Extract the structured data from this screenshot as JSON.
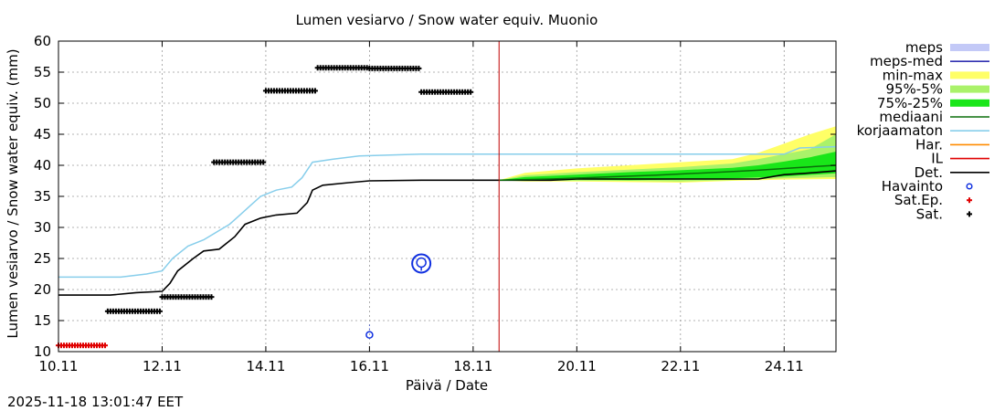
{
  "chart_data": {
    "type": "line",
    "title": "Lumen vesiarvo / Snow water equiv.  Muonio",
    "xlabel": "Päivä / Date",
    "ylabel": "Lumen vesiarvo / Snow water equiv. (mm)",
    "timestamp": "2025-11-18 13:01:47 EET",
    "xlim": [
      0,
      15
    ],
    "ylim": [
      10,
      60
    ],
    "x_unit": "days since 10.11",
    "x_ticks": [
      {
        "x": 0,
        "label": "10.11"
      },
      {
        "x": 2,
        "label": "12.11"
      },
      {
        "x": 4,
        "label": "14.11"
      },
      {
        "x": 6,
        "label": "16.11"
      },
      {
        "x": 8,
        "label": "18.11"
      },
      {
        "x": 10,
        "label": "20.11"
      },
      {
        "x": 12,
        "label": "22.11"
      },
      {
        "x": 14,
        "label": "24.11"
      }
    ],
    "y_ticks": [
      10,
      15,
      20,
      25,
      30,
      35,
      40,
      45,
      50,
      55,
      60
    ],
    "forecast_start_x": 8.5,
    "legend": [
      {
        "label": "meps",
        "color": "#c3c9f7",
        "style": "band"
      },
      {
        "label": "meps-med",
        "color": "#3030b0",
        "style": "line"
      },
      {
        "label": "min-max",
        "color": "#ffff66",
        "style": "band"
      },
      {
        "label": "95%-5%",
        "color": "#aaf26a",
        "style": "band"
      },
      {
        "label": "75%-25%",
        "color": "#19e619",
        "style": "band"
      },
      {
        "label": "mediaani",
        "color": "#0a6e0a",
        "style": "line"
      },
      {
        "label": "korjaamaton",
        "color": "#87ceeb",
        "style": "line"
      },
      {
        "label": "Har.",
        "color": "#ff8c00",
        "style": "line"
      },
      {
        "label": "IL",
        "color": "#e00000",
        "style": "line"
      },
      {
        "label": "Det.",
        "color": "#000000",
        "style": "line"
      },
      {
        "label": "Havainto",
        "color": "#1030e0",
        "style": "circle"
      },
      {
        "label": "Sat.Ep.",
        "color": "#e00000",
        "style": "plus"
      },
      {
        "label": "Sat.",
        "color": "#000000",
        "style": "plus"
      }
    ],
    "series": [
      {
        "name": "korjaamaton",
        "color": "#87ceeb",
        "points": [
          [
            0,
            22
          ],
          [
            1.2,
            22
          ],
          [
            1.7,
            22.5
          ],
          [
            2.0,
            23
          ],
          [
            2.2,
            25
          ],
          [
            2.5,
            27
          ],
          [
            2.8,
            28
          ],
          [
            3.1,
            29.5
          ],
          [
            3.3,
            30.5
          ],
          [
            3.5,
            32
          ],
          [
            3.7,
            33.5
          ],
          [
            3.9,
            35
          ],
          [
            4.2,
            36
          ],
          [
            4.5,
            36.5
          ],
          [
            4.7,
            38
          ],
          [
            4.9,
            40.5
          ],
          [
            5.3,
            41
          ],
          [
            5.8,
            41.5
          ],
          [
            7.0,
            41.8
          ],
          [
            8.5,
            41.8
          ],
          [
            14.0,
            41.8
          ],
          [
            14.3,
            42.8
          ],
          [
            15,
            43
          ]
        ]
      },
      {
        "name": "Det.",
        "color": "#000000",
        "points": [
          [
            0,
            19.1
          ],
          [
            1.0,
            19.1
          ],
          [
            1.5,
            19.5
          ],
          [
            2.0,
            19.7
          ],
          [
            2.15,
            21
          ],
          [
            2.3,
            23
          ],
          [
            2.6,
            25
          ],
          [
            2.8,
            26.2
          ],
          [
            3.1,
            26.5
          ],
          [
            3.4,
            28.5
          ],
          [
            3.6,
            30.5
          ],
          [
            3.9,
            31.5
          ],
          [
            4.2,
            32
          ],
          [
            4.6,
            32.3
          ],
          [
            4.8,
            34
          ],
          [
            4.9,
            36
          ],
          [
            5.1,
            36.8
          ],
          [
            5.6,
            37.2
          ],
          [
            6.0,
            37.5
          ],
          [
            7.0,
            37.6
          ],
          [
            8.5,
            37.6
          ],
          [
            9.5,
            37.6
          ],
          [
            10,
            37.8
          ],
          [
            13.5,
            37.8
          ],
          [
            14.0,
            38.5
          ],
          [
            14.4,
            38.7
          ],
          [
            15,
            39.1
          ]
        ]
      },
      {
        "name": "mediaani",
        "color": "#0a6e0a",
        "points": [
          [
            8.5,
            37.6
          ],
          [
            9.5,
            37.8
          ],
          [
            10.5,
            38.1
          ],
          [
            11.5,
            38.4
          ],
          [
            12.5,
            38.8
          ],
          [
            13.5,
            39.2
          ],
          [
            14.2,
            39.6
          ],
          [
            15,
            40.0
          ]
        ]
      }
    ],
    "bands": [
      {
        "name": "min-max",
        "color": "#ffff66",
        "upper": [
          [
            8.5,
            37.6
          ],
          [
            9,
            38.8
          ],
          [
            10,
            39.5
          ],
          [
            11,
            40
          ],
          [
            12,
            40.5
          ],
          [
            13,
            41
          ],
          [
            13.5,
            42
          ],
          [
            14,
            43.5
          ],
          [
            14.5,
            45
          ],
          [
            15,
            46.3
          ]
        ],
        "lower": [
          [
            15,
            37.8
          ],
          [
            14,
            37.7
          ],
          [
            13,
            37.5
          ],
          [
            12,
            37.2
          ],
          [
            11,
            37.3
          ],
          [
            10,
            37.4
          ],
          [
            9,
            37.4
          ],
          [
            8.5,
            37.6
          ]
        ]
      },
      {
        "name": "95%-5%",
        "color": "#aaf26a",
        "upper": [
          [
            8.5,
            37.6
          ],
          [
            9,
            38.4
          ],
          [
            10,
            38.9
          ],
          [
            11,
            39.3
          ],
          [
            12,
            39.7
          ],
          [
            13,
            40.3
          ],
          [
            13.5,
            41.0
          ],
          [
            14,
            41.8
          ],
          [
            14.5,
            42.6
          ],
          [
            15,
            45.0
          ]
        ],
        "lower": [
          [
            15,
            38.1
          ],
          [
            14,
            37.9
          ],
          [
            13,
            37.6
          ],
          [
            12,
            37.4
          ],
          [
            11,
            37.5
          ],
          [
            10,
            37.5
          ],
          [
            9,
            37.5
          ],
          [
            8.5,
            37.6
          ]
        ]
      },
      {
        "name": "75%-25%",
        "color": "#19e619",
        "upper": [
          [
            8.5,
            37.6
          ],
          [
            9,
            38.1
          ],
          [
            10,
            38.5
          ],
          [
            11,
            38.9
          ],
          [
            12,
            39.2
          ],
          [
            13,
            39.6
          ],
          [
            13.5,
            40.0
          ],
          [
            14,
            40.6
          ],
          [
            14.5,
            41.3
          ],
          [
            15,
            42.2
          ]
        ],
        "lower": [
          [
            15,
            38.7
          ],
          [
            14,
            38.2
          ],
          [
            13,
            37.9
          ],
          [
            12,
            37.7
          ],
          [
            11,
            37.6
          ],
          [
            10,
            37.7
          ],
          [
            9,
            37.6
          ],
          [
            8.5,
            37.6
          ]
        ]
      }
    ],
    "sat_segments": [
      {
        "x0": 0.95,
        "x1": 2.0,
        "y": 16.5
      },
      {
        "x0": 2.0,
        "x1": 3.0,
        "y": 18.8
      },
      {
        "x0": 3.0,
        "x1": 4.0,
        "y": 40.5
      },
      {
        "x0": 4.0,
        "x1": 5.0,
        "y": 52.0
      },
      {
        "x0": 5.0,
        "x1": 6.0,
        "y": 55.7
      },
      {
        "x0": 6.0,
        "x1": 7.0,
        "y": 55.6
      },
      {
        "x0": 7.0,
        "x1": 8.0,
        "y": 51.8
      }
    ],
    "sat_ep_segments": [
      {
        "x0": 0.0,
        "x1": 0.95,
        "y": 11.0
      }
    ],
    "havainto": [
      {
        "x": 6.0,
        "y": 12.7,
        "size": "small"
      },
      {
        "x": 7.0,
        "y": 24.2,
        "size": "large"
      }
    ]
  }
}
